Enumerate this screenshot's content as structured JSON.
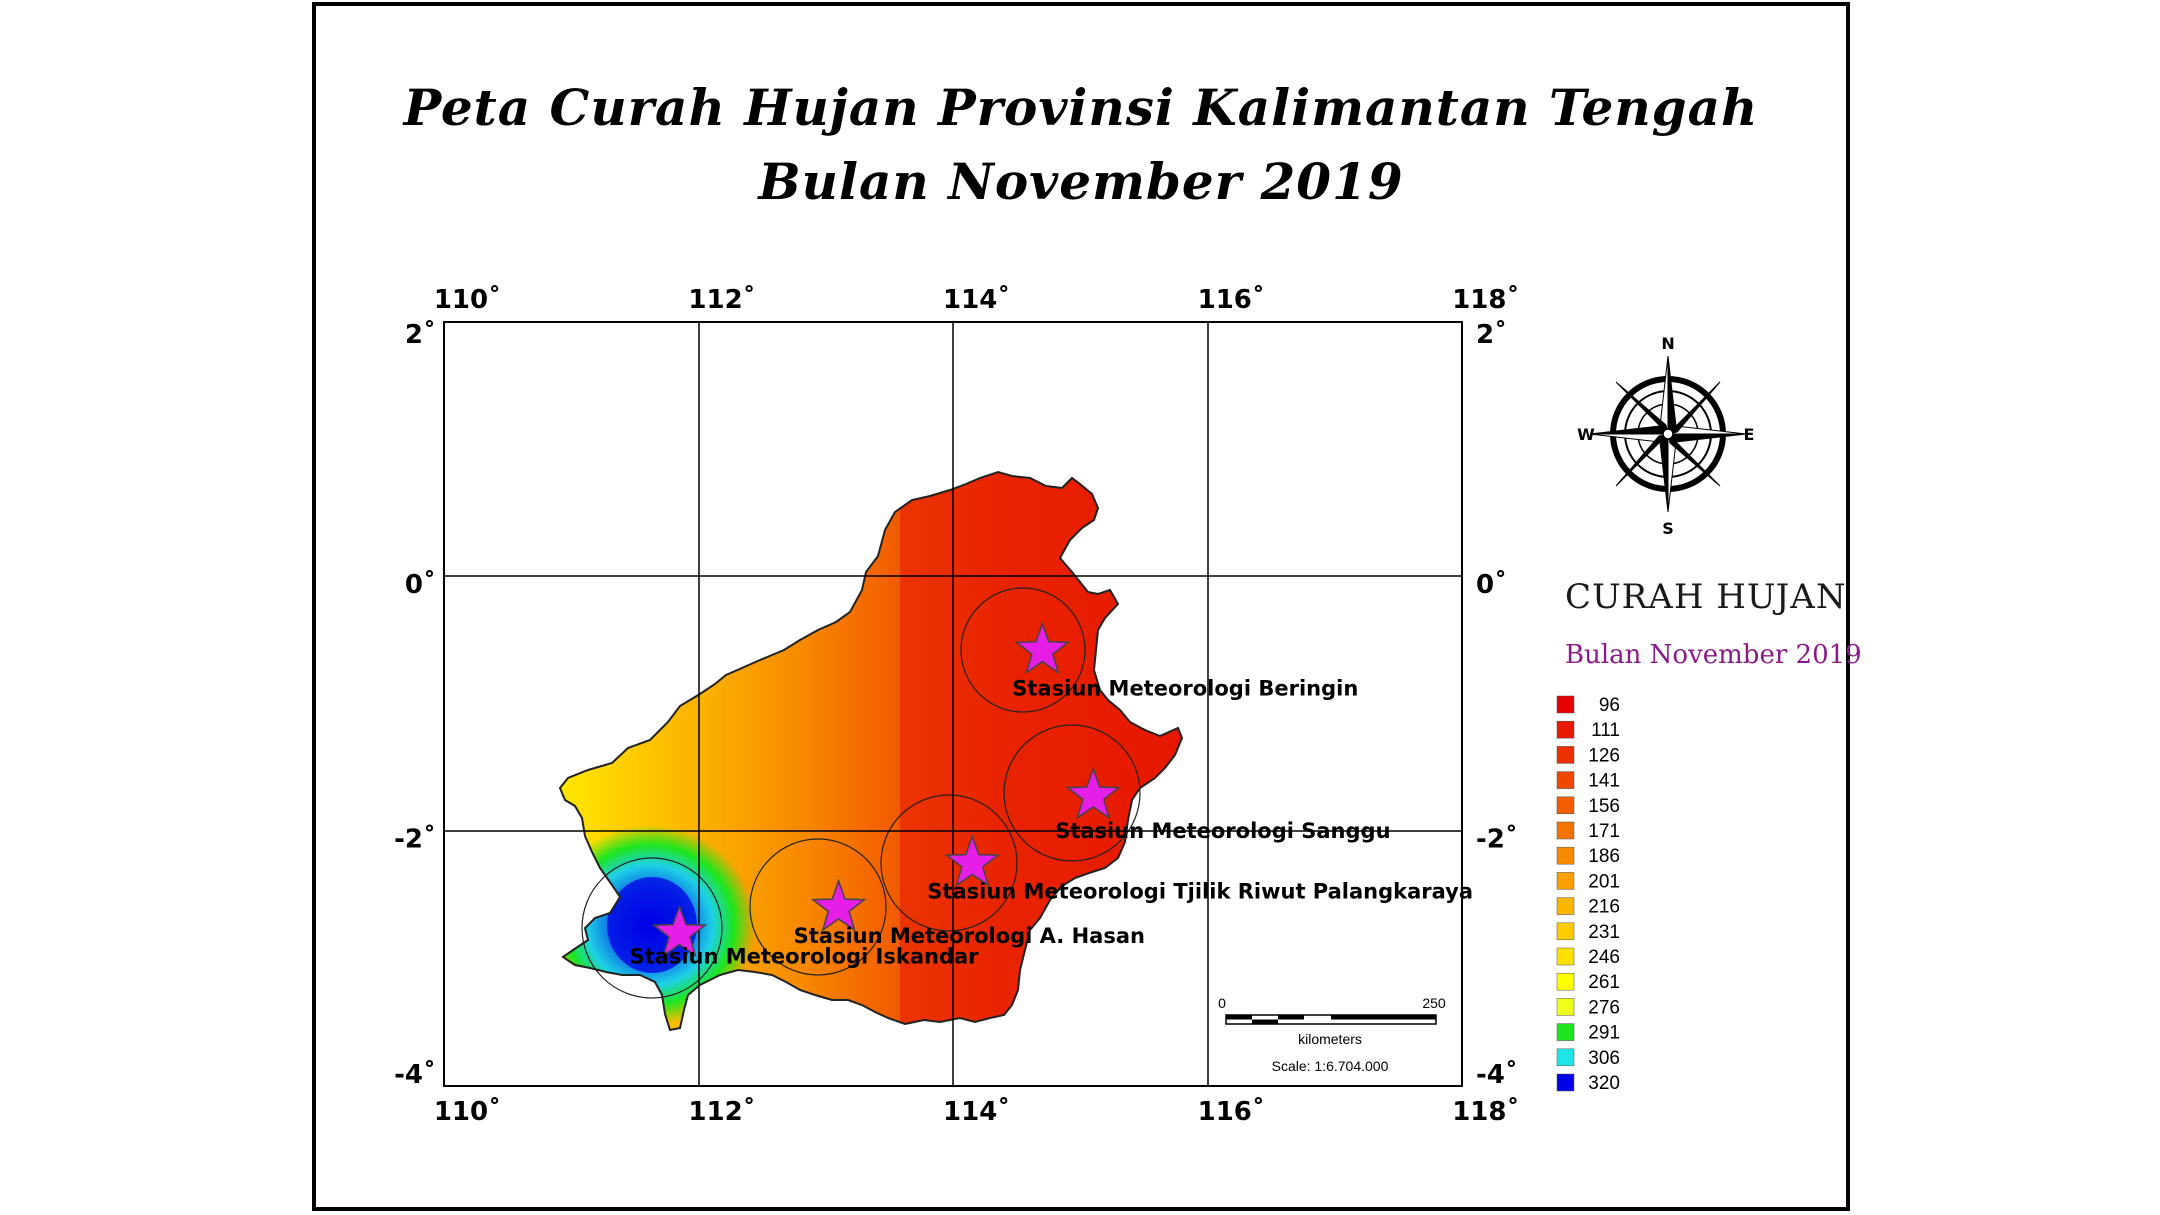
{
  "title": {
    "line1": "Peta Curah Hujan Provinsi Kalimantan Tengah",
    "line2": "Bulan November 2019"
  },
  "map": {
    "lon_ticks": [
      "110˚",
      "112˚",
      "114˚",
      "116˚",
      "118˚"
    ],
    "lat_ticks": [
      "2˚",
      "0˚",
      "-2˚",
      "-4˚"
    ],
    "lon_values": [
      110,
      112,
      114,
      116,
      118
    ],
    "lat_values": [
      2,
      0,
      -2,
      -4
    ],
    "stations": [
      {
        "name": "Stasiun Meteorologi Beringin",
        "lon": 114.5,
        "lat": -0.58
      },
      {
        "name": "Stasiun Meteorologi Sanggu",
        "lon": 114.9,
        "lat": -1.72
      },
      {
        "name": "Stasiun Meteorologi  Tjilik Riwut Palangkaraya",
        "lon": 113.95,
        "lat": -2.25
      },
      {
        "name": "Stasiun Meteorologi A. Hasan",
        "lon": 112.9,
        "lat": -2.6
      },
      {
        "name": "Stasiun Meteorologi Iskandar",
        "lon": 111.65,
        "lat": -2.8
      }
    ],
    "star_color": "#e61ee6"
  },
  "compass": {
    "n": "N",
    "s": "S",
    "e": "E",
    "w": "W"
  },
  "scale_bar": {
    "min_label": "0",
    "max_label": "250",
    "unit": "kilometers",
    "scale_text": "Scale: 1:6.704.000"
  },
  "legend": {
    "title": "CURAH HUJAN",
    "subtitle": "Bulan November 2019",
    "classes": [
      {
        "value": "96",
        "color": "#e60000"
      },
      {
        "value": "111",
        "color": "#e81a00"
      },
      {
        "value": "126",
        "color": "#ec3000"
      },
      {
        "value": "141",
        "color": "#ef4700"
      },
      {
        "value": "156",
        "color": "#f25d00"
      },
      {
        "value": "171",
        "color": "#f47400"
      },
      {
        "value": "186",
        "color": "#f78a00"
      },
      {
        "value": "201",
        "color": "#f9a000"
      },
      {
        "value": "216",
        "color": "#fbb600"
      },
      {
        "value": "231",
        "color": "#fdcc00"
      },
      {
        "value": "246",
        "color": "#ffe000"
      },
      {
        "value": "261",
        "color": "#ffff00"
      },
      {
        "value": "276",
        "color": "#f0ff1a"
      },
      {
        "value": "291",
        "color": "#1ee61e"
      },
      {
        "value": "306",
        "color": "#1ee6e6"
      },
      {
        "value": "320",
        "color": "#0000e6"
      }
    ]
  }
}
